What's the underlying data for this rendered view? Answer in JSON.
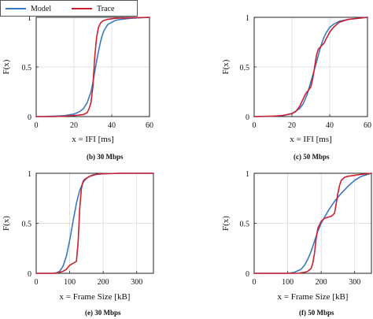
{
  "legend": {
    "model_label": "Model",
    "trace_label": "Trace"
  },
  "colors": {
    "model": "#3a78c2",
    "trace": "#cc1f2f",
    "grid": "#d9d9d9",
    "axis": "#222222"
  },
  "chart_data": [
    {
      "type": "line",
      "caption": "(b) 30 Mbps",
      "xlabel": "x = IFI [ms]",
      "ylabel": "F(x)",
      "xlim": [
        0,
        60
      ],
      "ylim": [
        0,
        1
      ],
      "xticks": [
        0,
        20,
        40,
        60
      ],
      "yticks": [
        0,
        0.5,
        1
      ],
      "ytick_labels": [
        "0",
        "0.5",
        "1"
      ],
      "grid": true,
      "series": [
        {
          "name": "Model",
          "x": [
            0,
            5,
            10,
            15,
            20,
            23,
            25,
            27,
            29,
            30,
            31,
            32,
            33,
            34,
            35,
            36,
            37,
            38,
            40,
            42,
            45,
            50,
            55,
            60
          ],
          "y": [
            0.0,
            0.002,
            0.005,
            0.01,
            0.025,
            0.05,
            0.08,
            0.14,
            0.25,
            0.34,
            0.45,
            0.56,
            0.66,
            0.75,
            0.82,
            0.87,
            0.9,
            0.93,
            0.95,
            0.97,
            0.98,
            0.99,
            0.995,
            1.0
          ]
        },
        {
          "name": "Trace",
          "x": [
            0,
            10,
            20,
            25,
            27,
            28,
            29,
            30,
            31,
            32,
            33,
            34,
            35,
            36,
            37,
            38,
            40,
            42,
            45,
            50,
            55,
            60
          ],
          "y": [
            0.0,
            0.0,
            0.01,
            0.02,
            0.04,
            0.08,
            0.14,
            0.3,
            0.6,
            0.8,
            0.9,
            0.94,
            0.96,
            0.97,
            0.975,
            0.98,
            0.985,
            0.99,
            0.993,
            0.995,
            0.998,
            1.0
          ]
        }
      ]
    },
    {
      "type": "line",
      "caption": "(c) 50 Mbps",
      "xlabel": "x = IFI [ms]",
      "ylabel": "F(x)",
      "xlim": [
        0,
        60
      ],
      "ylim": [
        0,
        1
      ],
      "xticks": [
        0,
        20,
        40,
        60
      ],
      "yticks": [
        0,
        0.5,
        1
      ],
      "ytick_labels": [
        "0",
        "0.5",
        "1"
      ],
      "grid": true,
      "series": [
        {
          "name": "Model",
          "x": [
            0,
            10,
            15,
            20,
            24,
            26,
            28,
            30,
            32,
            33,
            34,
            35,
            36,
            37,
            38,
            39,
            40,
            42,
            45,
            50,
            55,
            60
          ],
          "y": [
            0.0,
            0.003,
            0.01,
            0.03,
            0.08,
            0.13,
            0.22,
            0.35,
            0.48,
            0.55,
            0.62,
            0.69,
            0.75,
            0.8,
            0.84,
            0.87,
            0.9,
            0.93,
            0.96,
            0.98,
            0.99,
            1.0
          ]
        },
        {
          "name": "Trace",
          "x": [
            0,
            10,
            15,
            20,
            22,
            24,
            26,
            27,
            28,
            29,
            30,
            31,
            32,
            33,
            34,
            35,
            36,
            37,
            38,
            40,
            42,
            45,
            50,
            55,
            60
          ],
          "y": [
            0.0,
            0.005,
            0.01,
            0.03,
            0.05,
            0.1,
            0.18,
            0.22,
            0.25,
            0.27,
            0.3,
            0.38,
            0.5,
            0.62,
            0.68,
            0.7,
            0.72,
            0.74,
            0.78,
            0.85,
            0.9,
            0.95,
            0.98,
            0.99,
            1.0
          ]
        }
      ]
    },
    {
      "type": "line",
      "caption": "(e) 30 Mbps",
      "xlabel": "x = Frame Size [kB]",
      "ylabel": "F(x)",
      "xlim": [
        0,
        350
      ],
      "ylim": [
        0,
        1
      ],
      "xticks": [
        0,
        100,
        200,
        300
      ],
      "yticks": [
        0,
        0.5,
        1
      ],
      "ytick_labels": [
        "0",
        "0.5",
        "1"
      ],
      "grid": true,
      "series": [
        {
          "name": "Model",
          "x": [
            0,
            50,
            60,
            70,
            80,
            90,
            100,
            110,
            120,
            130,
            140,
            150,
            160,
            170,
            180,
            200,
            250,
            300,
            350
          ],
          "y": [
            0.0,
            0.0,
            0.005,
            0.02,
            0.07,
            0.17,
            0.33,
            0.52,
            0.7,
            0.83,
            0.91,
            0.95,
            0.97,
            0.985,
            0.99,
            0.995,
            1.0,
            1.0,
            1.0
          ]
        },
        {
          "name": "Trace",
          "x": [
            0,
            60,
            70,
            80,
            90,
            100,
            110,
            120,
            125,
            130,
            135,
            140,
            145,
            150,
            160,
            170,
            180,
            200,
            250,
            300,
            350
          ],
          "y": [
            0.0,
            0.0,
            0.01,
            0.02,
            0.04,
            0.08,
            0.1,
            0.12,
            0.3,
            0.65,
            0.85,
            0.92,
            0.94,
            0.95,
            0.97,
            0.98,
            0.99,
            0.995,
            1.0,
            1.0,
            1.0
          ]
        }
      ]
    },
    {
      "type": "line",
      "caption": "(f) 50 Mbps",
      "xlabel": "x = Frame Size [kB]",
      "ylabel": "F(x)",
      "xlim": [
        0,
        350
      ],
      "ylim": [
        0,
        1
      ],
      "xticks": [
        0,
        100,
        200,
        300
      ],
      "yticks": [
        0,
        0.5,
        1
      ],
      "ytick_labels": [
        "0",
        "0.5",
        "1"
      ],
      "grid": true,
      "series": [
        {
          "name": "Model",
          "x": [
            0,
            100,
            120,
            140,
            150,
            160,
            170,
            180,
            190,
            200,
            220,
            240,
            260,
            280,
            300,
            320,
            340,
            350
          ],
          "y": [
            0.0,
            0.0,
            0.01,
            0.04,
            0.08,
            0.14,
            0.22,
            0.32,
            0.42,
            0.5,
            0.62,
            0.72,
            0.8,
            0.87,
            0.93,
            0.97,
            0.99,
            1.0
          ]
        },
        {
          "name": "Trace",
          "x": [
            0,
            130,
            150,
            160,
            170,
            175,
            180,
            185,
            190,
            200,
            210,
            220,
            230,
            240,
            245,
            250,
            255,
            260,
            270,
            280,
            300,
            320,
            350
          ],
          "y": [
            0.0,
            0.0,
            0.01,
            0.02,
            0.05,
            0.1,
            0.2,
            0.35,
            0.45,
            0.52,
            0.55,
            0.56,
            0.57,
            0.6,
            0.7,
            0.8,
            0.88,
            0.93,
            0.96,
            0.97,
            0.98,
            0.99,
            1.0
          ]
        }
      ]
    }
  ]
}
